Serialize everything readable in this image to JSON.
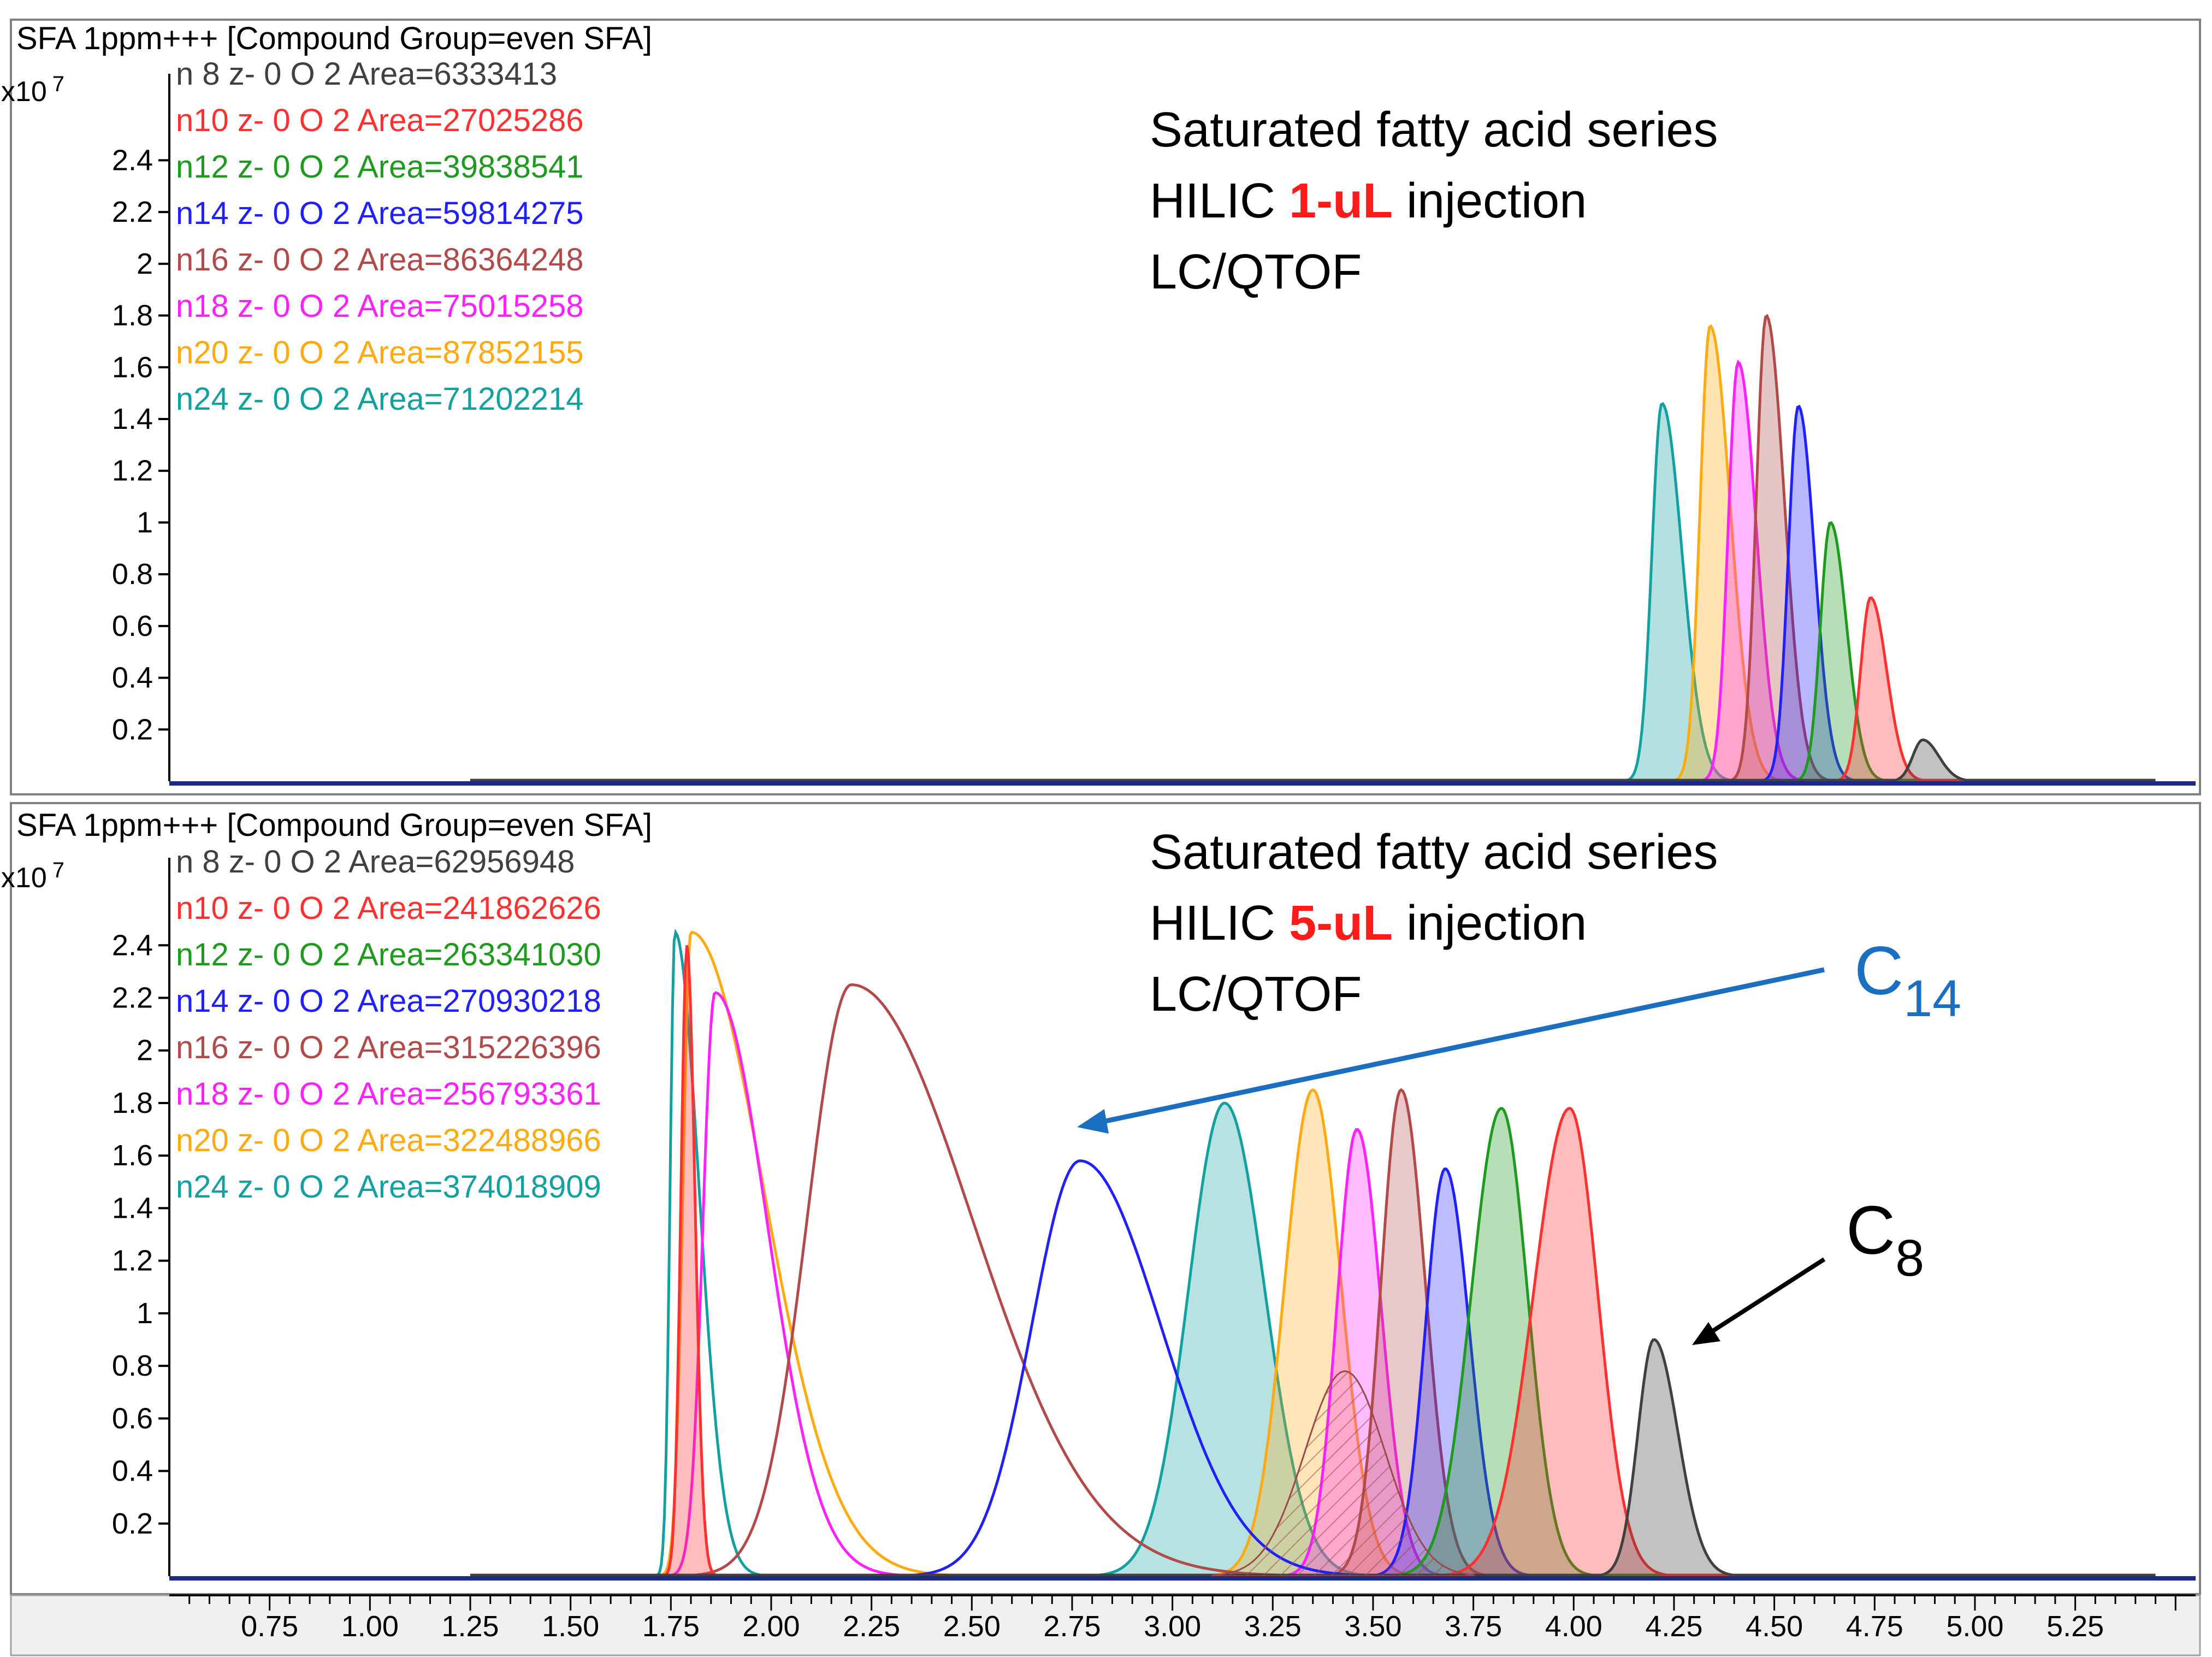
{
  "window_title": "SFA 1ppm+++ [Compound Group=even SFA]",
  "chart_data": [
    {
      "type": "area",
      "panel": "top",
      "title": "SFA 1ppm+++ [Compound Group=even SFA]",
      "y_multiplier_label": "x10",
      "y_multiplier_exp": "7",
      "ylim": [
        0,
        2.65
      ],
      "xlim": [
        0.5,
        5.55
      ],
      "yticks": [
        0.2,
        0.4,
        0.6,
        0.8,
        1,
        1.2,
        1.4,
        1.6,
        1.8,
        2,
        2.2,
        2.4
      ],
      "ytick_labels": [
        "0.2",
        "0.4",
        "0.6",
        "0.8",
        "1",
        "1.2",
        "1.4",
        "1.6",
        "1.8",
        "2",
        "2.2",
        "2.4"
      ],
      "annotation": {
        "line1": "Saturated fatty acid series",
        "line2_pre": "HILIC ",
        "line2_highlight": "1-uL",
        "line2_post": " injection",
        "line3": "LC/QTOF"
      },
      "series": [
        {
          "name": "n 8 z- 0 O 2 Area=6333413",
          "color": "#404040",
          "peaks": [
            {
              "center": 4.87,
              "height": 0.16,
              "sigma_left": 0.025,
              "sigma_right": 0.04
            }
          ]
        },
        {
          "name": "n10 z- 0 O 2 Area=27025286",
          "color": "#ff3030",
          "peaks": [
            {
              "center": 4.74,
              "height": 0.71,
              "sigma_left": 0.025,
              "sigma_right": 0.04
            }
          ]
        },
        {
          "name": "n12 z- 0 O 2 Area=39838541",
          "color": "#1e9a1e",
          "peaks": [
            {
              "center": 4.64,
              "height": 1.0,
              "sigma_left": 0.025,
              "sigma_right": 0.04
            }
          ]
        },
        {
          "name": "n14 z- 0 O 2 Area=59814275",
          "color": "#2020ff",
          "peaks": [
            {
              "center": 4.56,
              "height": 1.45,
              "sigma_left": 0.025,
              "sigma_right": 0.04
            }
          ]
        },
        {
          "name": "n16 z- 0 O 2 Area=86364248",
          "color": "#b24a4a",
          "peaks": [
            {
              "center": 4.48,
              "height": 1.8,
              "sigma_left": 0.025,
              "sigma_right": 0.045
            }
          ]
        },
        {
          "name": "n18 z- 0 O 2 Area=75015258",
          "color": "#ff20ff",
          "peaks": [
            {
              "center": 4.41,
              "height": 1.62,
              "sigma_left": 0.025,
              "sigma_right": 0.045
            }
          ]
        },
        {
          "name": "n20 z- 0 O 2 Area=87852155",
          "color": "#ffaa10",
          "peaks": [
            {
              "center": 4.34,
              "height": 1.76,
              "sigma_left": 0.025,
              "sigma_right": 0.05
            }
          ]
        },
        {
          "name": "n24 z- 0 O 2 Area=71202214",
          "color": "#12a0a0",
          "peaks": [
            {
              "center": 4.22,
              "height": 1.46,
              "sigma_left": 0.025,
              "sigma_right": 0.05
            }
          ]
        }
      ]
    },
    {
      "type": "area",
      "panel": "bottom",
      "title": "SFA 1ppm+++ [Compound Group=even SFA]",
      "y_multiplier_label": "x10",
      "y_multiplier_exp": "7",
      "ylim": [
        0,
        2.65
      ],
      "xlim": [
        0.5,
        5.55
      ],
      "yticks": [
        0.2,
        0.4,
        0.6,
        0.8,
        1,
        1.2,
        1.4,
        1.6,
        1.8,
        2,
        2.2,
        2.4
      ],
      "ytick_labels": [
        "0.2",
        "0.4",
        "0.6",
        "0.8",
        "1",
        "1.2",
        "1.4",
        "1.6",
        "1.8",
        "2",
        "2.2",
        "2.4"
      ],
      "xticks": [
        0.75,
        1.0,
        1.25,
        1.5,
        1.75,
        2.0,
        2.25,
        2.5,
        2.75,
        3.0,
        3.25,
        3.5,
        3.75,
        4.0,
        4.25,
        4.5,
        4.75,
        5.0,
        5.25
      ],
      "xtick_labels": [
        "0.75",
        "1.00",
        "1.25",
        "1.50",
        "1.75",
        "2.00",
        "2.25",
        "2.50",
        "2.75",
        "3.00",
        "3.25",
        "3.50",
        "3.75",
        "4.00",
        "4.25",
        "4.50",
        "4.75",
        "5.00",
        "5.25"
      ],
      "annotation": {
        "line1": "Saturated fatty acid series",
        "line2_pre": "HILIC ",
        "line2_highlight": "5-uL",
        "line2_post": " injection",
        "line3": "LC/QTOF"
      },
      "callouts": [
        {
          "label": "C",
          "subscript": "14",
          "color": "#1a6fc0",
          "points_to_rt": 2.77,
          "points_to_intensity": 1.63
        },
        {
          "label": "C",
          "subscript": "8",
          "color": "#000000",
          "points_to_rt": 4.2,
          "points_to_intensity": 0.9
        }
      ],
      "series": [
        {
          "name": "n 8 z- 0 O 2 Area=62956948",
          "color": "#404040",
          "filled": true,
          "peaks": [
            {
              "center": 4.2,
              "height": 0.9,
              "sigma_left": 0.04,
              "sigma_right": 0.06
            }
          ]
        },
        {
          "name": "n10 z- 0 O 2 Area=241862626",
          "color": "#ff3030",
          "filled": true,
          "peaks": [
            {
              "center": 3.99,
              "height": 1.78,
              "sigma_left": 0.09,
              "sigma_right": 0.07
            },
            {
              "center": 1.79,
              "height": 2.4,
              "sigma_left": 0.015,
              "sigma_right": 0.02
            }
          ]
        },
        {
          "name": "n12 z- 0 O 2 Area=263341030",
          "color": "#1e9a1e",
          "filled": true,
          "peaks": [
            {
              "center": 3.82,
              "height": 1.78,
              "sigma_left": 0.075,
              "sigma_right": 0.065
            }
          ]
        },
        {
          "name": "n14 z- 0 O 2 Area=270930218",
          "color": "#2020ff",
          "filled": false,
          "peaks": [
            {
              "center": 2.77,
              "height": 1.58,
              "sigma_left": 0.12,
              "sigma_right": 0.2
            },
            {
              "center": 3.68,
              "height": 1.55,
              "sigma_left": 0.05,
              "sigma_right": 0.06
            }
          ]
        },
        {
          "name": "n16 z- 0 O 2 Area=315226396",
          "color": "#b24a4a",
          "filled": false,
          "peaks": [
            {
              "center": 2.2,
              "height": 2.25,
              "sigma_left": 0.11,
              "sigma_right": 0.3
            },
            {
              "center": 3.57,
              "height": 1.85,
              "sigma_left": 0.05,
              "sigma_right": 0.06
            }
          ]
        },
        {
          "name": "n18 z- 0 O 2 Area=256793361",
          "color": "#ff20ff",
          "filled": false,
          "peaks": [
            {
              "center": 1.86,
              "height": 2.22,
              "sigma_left": 0.03,
              "sigma_right": 0.13
            },
            {
              "center": 3.46,
              "height": 1.7,
              "sigma_left": 0.05,
              "sigma_right": 0.06
            }
          ]
        },
        {
          "name": "n20 z- 0 O 2 Area=322488966",
          "color": "#ffaa10",
          "filled": false,
          "peaks": [
            {
              "center": 1.8,
              "height": 2.45,
              "sigma_left": 0.02,
              "sigma_right": 0.18
            },
            {
              "center": 3.35,
              "height": 1.85,
              "sigma_left": 0.07,
              "sigma_right": 0.07
            }
          ]
        },
        {
          "name": "n24 z- 0 O 2 Area=374018909",
          "color": "#12a0a0",
          "filled": false,
          "peaks": [
            {
              "center": 1.76,
              "height": 2.45,
              "sigma_left": 0.012,
              "sigma_right": 0.06
            },
            {
              "center": 3.13,
              "height": 1.8,
              "sigma_left": 0.09,
              "sigma_right": 0.1
            }
          ]
        }
      ]
    }
  ]
}
